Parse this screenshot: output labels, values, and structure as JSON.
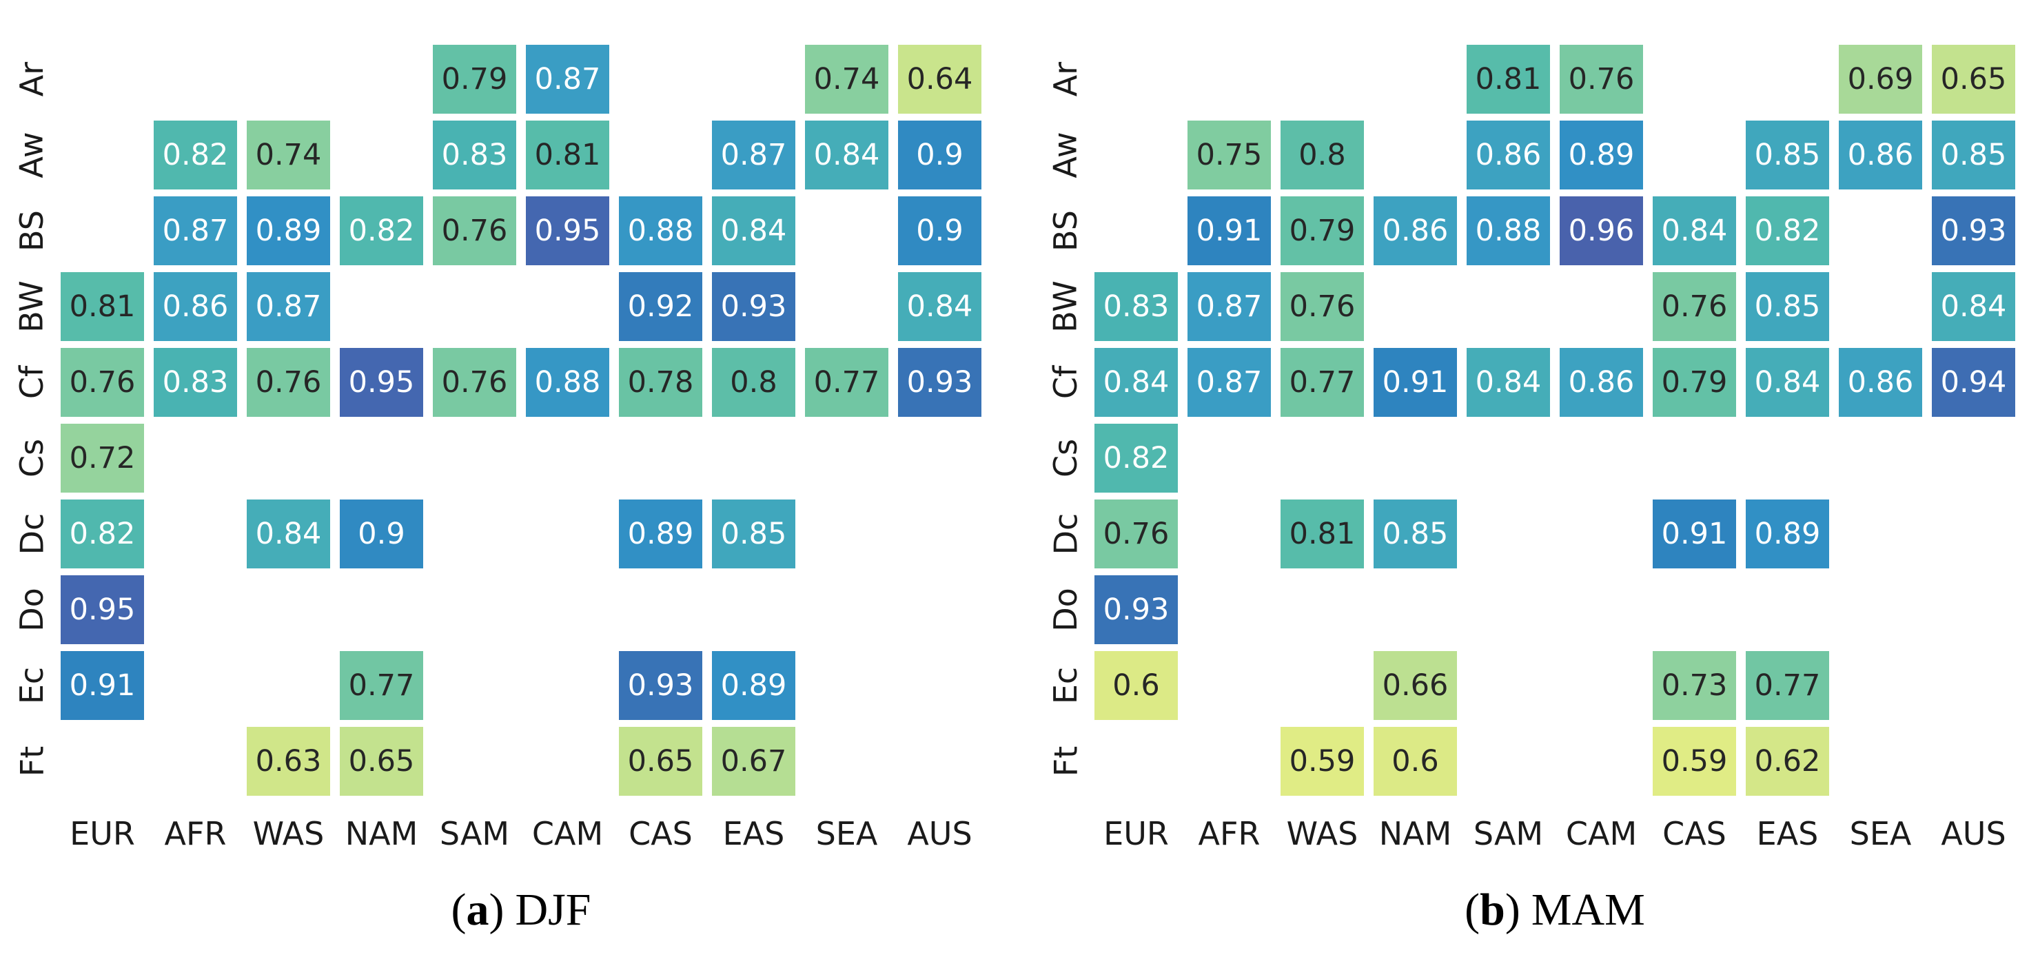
{
  "chart_data": {
    "type": "heatmap",
    "description": "Two annotated heatmaps of values (0-1) per Koppen climate zone (rows) and world region (columns); empty cells mean no data",
    "columns": [
      "EUR",
      "AFR",
      "WAS",
      "NAM",
      "SAM",
      "CAM",
      "CAS",
      "EAS",
      "SEA",
      "AUS"
    ],
    "rows": [
      "Ar",
      "Aw",
      "BS",
      "BW",
      "Cf",
      "Cs",
      "Dc",
      "Do",
      "Ec",
      "Ft"
    ],
    "panels": [
      {
        "letter": "a",
        "season": "DJF",
        "values": [
          [
            null,
            null,
            null,
            null,
            0.79,
            0.87,
            null,
            null,
            0.74,
            0.64
          ],
          [
            null,
            0.82,
            0.74,
            null,
            0.83,
            0.81,
            null,
            0.87,
            0.84,
            0.9
          ],
          [
            null,
            0.87,
            0.89,
            0.82,
            0.76,
            0.95,
            0.88,
            0.84,
            null,
            0.9
          ],
          [
            0.81,
            0.86,
            0.87,
            null,
            null,
            null,
            0.92,
            0.93,
            null,
            0.84
          ],
          [
            0.76,
            0.83,
            0.76,
            0.95,
            0.76,
            0.88,
            0.78,
            0.8,
            0.77,
            0.93
          ],
          [
            0.72,
            null,
            null,
            null,
            null,
            null,
            null,
            null,
            null,
            null
          ],
          [
            0.82,
            null,
            0.84,
            0.9,
            null,
            null,
            0.89,
            0.85,
            null,
            null
          ],
          [
            0.95,
            null,
            null,
            null,
            null,
            null,
            null,
            null,
            null,
            null
          ],
          [
            0.91,
            null,
            null,
            0.77,
            null,
            null,
            0.93,
            0.89,
            null,
            null
          ],
          [
            null,
            null,
            0.63,
            0.65,
            null,
            null,
            0.65,
            0.67,
            null,
            null
          ]
        ]
      },
      {
        "letter": "b",
        "season": "MAM",
        "values": [
          [
            null,
            null,
            null,
            null,
            0.81,
            0.76,
            null,
            null,
            0.69,
            0.65
          ],
          [
            null,
            0.75,
            0.8,
            null,
            0.86,
            0.89,
            null,
            0.85,
            0.86,
            0.85
          ],
          [
            null,
            0.91,
            0.79,
            0.86,
            0.88,
            0.96,
            0.84,
            0.82,
            null,
            0.93
          ],
          [
            0.83,
            0.87,
            0.76,
            null,
            null,
            null,
            0.76,
            0.85,
            null,
            0.84
          ],
          [
            0.84,
            0.87,
            0.77,
            0.91,
            0.84,
            0.86,
            0.79,
            0.84,
            0.86,
            0.94
          ],
          [
            0.82,
            null,
            null,
            null,
            null,
            null,
            null,
            null,
            null,
            null
          ],
          [
            0.76,
            null,
            0.81,
            0.85,
            null,
            null,
            0.91,
            0.89,
            null,
            null
          ],
          [
            0.93,
            null,
            null,
            null,
            null,
            null,
            null,
            null,
            null,
            null
          ],
          [
            0.6,
            null,
            null,
            0.66,
            null,
            null,
            0.73,
            0.77,
            null,
            null
          ],
          [
            null,
            null,
            0.59,
            0.6,
            null,
            null,
            0.59,
            0.62,
            null,
            null
          ]
        ]
      }
    ],
    "value_range_shown": [
      0.59,
      0.96
    ],
    "colormap": {
      "style": "YlGnBu-like, low=yellow-green high=indigo-blue",
      "anchors": [
        [
          0.57,
          "#e7ef83"
        ],
        [
          0.6,
          "#dcea86"
        ],
        [
          0.63,
          "#d0e689"
        ],
        [
          0.66,
          "#bce091"
        ],
        [
          0.7,
          "#a1d79a"
        ],
        [
          0.74,
          "#88cf9f"
        ],
        [
          0.78,
          "#69c3a4"
        ],
        [
          0.81,
          "#57bcaa"
        ],
        [
          0.83,
          "#49b3b2"
        ],
        [
          0.85,
          "#40a7bd"
        ],
        [
          0.87,
          "#3a9dc4"
        ],
        [
          0.89,
          "#3190c5"
        ],
        [
          0.91,
          "#2e84bf"
        ],
        [
          0.93,
          "#3873b6"
        ],
        [
          0.95,
          "#4467b0"
        ],
        [
          0.97,
          "#4e5ca8"
        ]
      ]
    },
    "text_rule": {
      "white_text_min": 0.82,
      "dark_text": "#262626",
      "white_text": "#ffffff"
    },
    "legend": false,
    "grid_lines": false
  }
}
